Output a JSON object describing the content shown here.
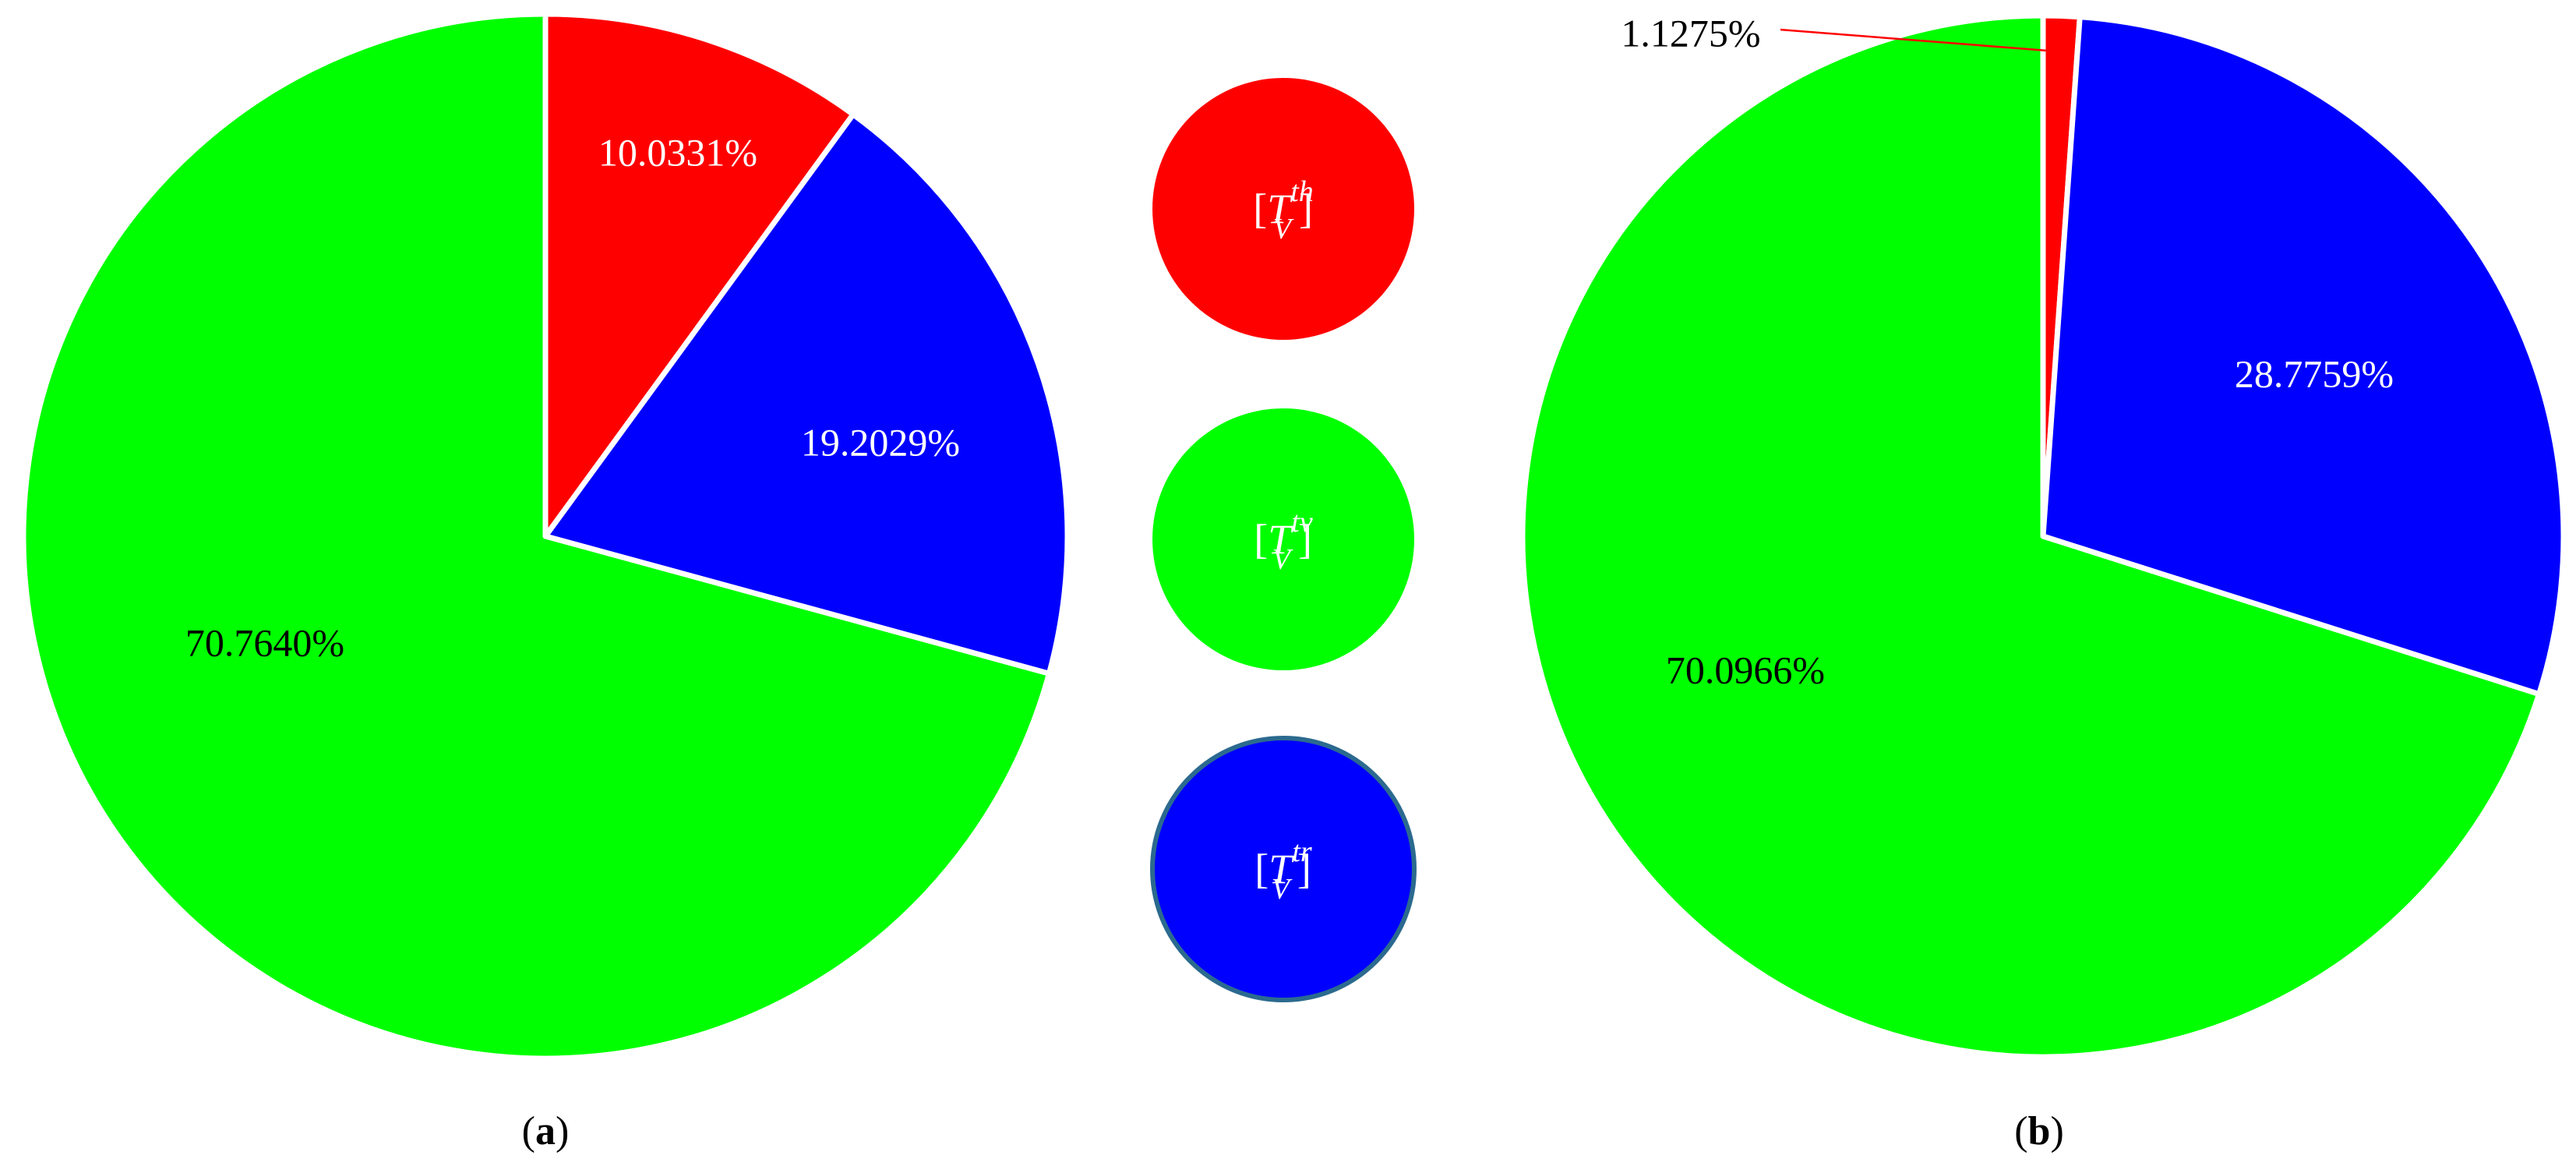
{
  "chart_data": [
    {
      "type": "pie",
      "panel_label_open": "(",
      "panel_label_letter": "a",
      "panel_label_close": ")",
      "start": "12 o'clock",
      "direction": "clockwise",
      "slices": [
        {
          "series": "th",
          "value": 10.0331,
          "label": "10.0331%",
          "color": "#ff0000",
          "label_color": "#ffffff"
        },
        {
          "series": "tr",
          "value": 19.2029,
          "label": "19.2029%",
          "color": "#0000ff",
          "label_color": "#ffffff"
        },
        {
          "series": "tv",
          "value": 70.764,
          "label": "70.7640%",
          "color": "#00ff00",
          "label_color": "#000000"
        }
      ]
    },
    {
      "type": "pie",
      "panel_label_open": "(",
      "panel_label_letter": "b",
      "panel_label_close": ")",
      "start": "12 o'clock",
      "direction": "clockwise",
      "slices": [
        {
          "series": "th",
          "value": 1.1275,
          "label": "1.1275%",
          "color": "#ff0000",
          "label_color": "#000000",
          "label_outside": true
        },
        {
          "series": "tr",
          "value": 28.7759,
          "label": "28.7759%",
          "color": "#0000ff",
          "label_color": "#ffffff"
        },
        {
          "series": "tv",
          "value": 70.0966,
          "label": "70.0966%",
          "color": "#00ff00",
          "label_color": "#000000"
        }
      ]
    }
  ],
  "legend": {
    "placement": "center column between pies",
    "items": [
      {
        "series": "th",
        "open": "[",
        "base": "T",
        "sub": "V",
        "sup": "th",
        "close": "]",
        "color": "#ff0000"
      },
      {
        "series": "tv",
        "open": "[",
        "base": "T",
        "sub": "V",
        "sup": "tv",
        "close": "]",
        "color": "#00ff00"
      },
      {
        "series": "tr",
        "open": "[",
        "base": "T",
        "sub": "V",
        "sup": "tr",
        "close": "]",
        "color": "#0000ff",
        "outline": "#2b6a8f"
      }
    ]
  }
}
